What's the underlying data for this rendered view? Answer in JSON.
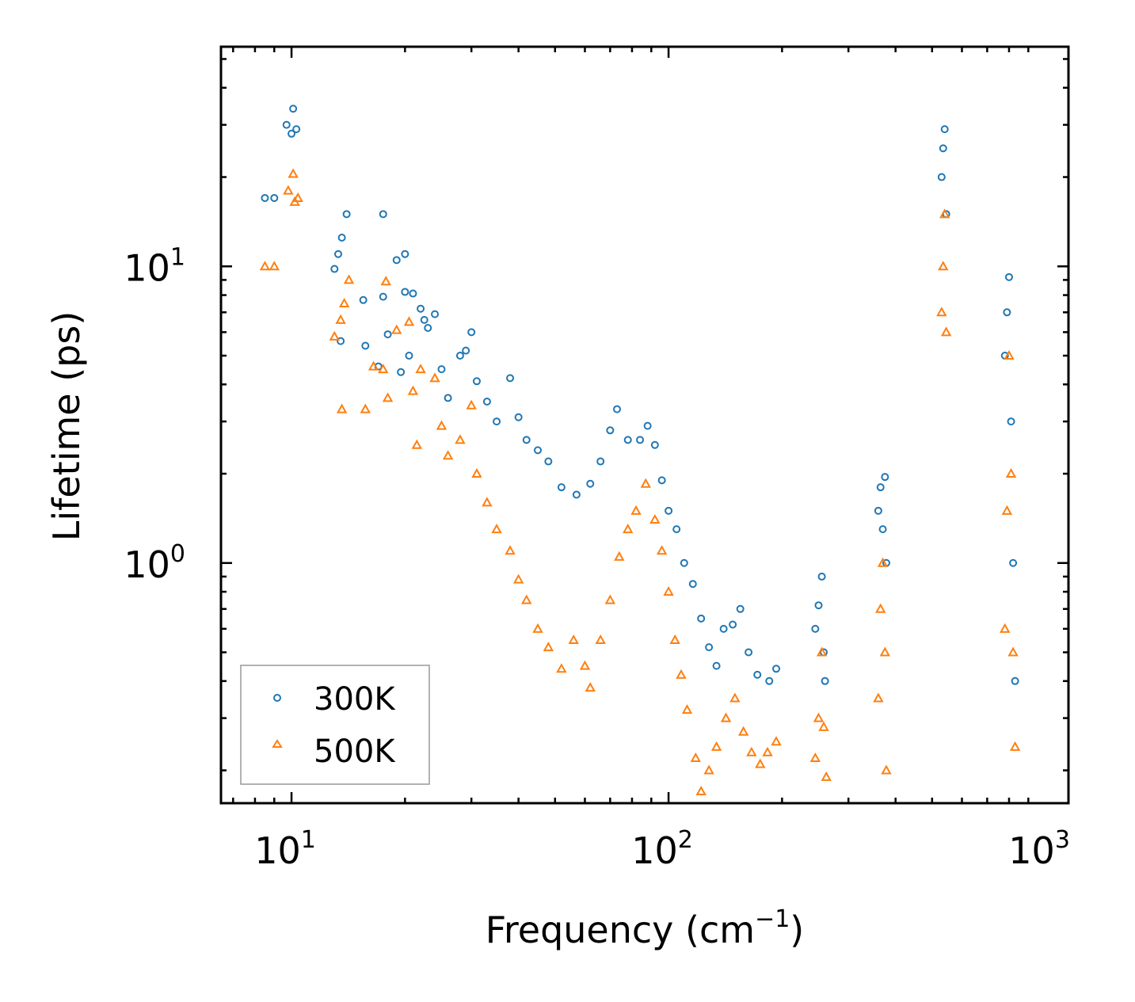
{
  "chart_data": {
    "type": "scatter",
    "xscale": "log",
    "yscale": "log",
    "xlabel": "Frequency (cm",
    "xlabel_sup": "−1",
    "xlabel_close": ")",
    "ylabel": "Lifetime (ps)",
    "xlim": [
      6.5,
      1150
    ],
    "ylim": [
      0.155,
      55
    ],
    "x_ticks": [
      {
        "base": "10",
        "exp": "1",
        "value": 10
      },
      {
        "base": "10",
        "exp": "2",
        "value": 100
      },
      {
        "base": "10",
        "exp": "3",
        "value": 1000
      }
    ],
    "y_ticks": [
      {
        "base": "10",
        "exp": "0",
        "value": 1
      },
      {
        "base": "10",
        "exp": "1",
        "value": 10
      }
    ],
    "legend_position": "lower-left",
    "series": [
      {
        "name": "300K",
        "marker": "circle",
        "color": "#1f77b4",
        "points": [
          [
            8.5,
            17.0
          ],
          [
            9.0,
            17.0
          ],
          [
            9.7,
            30.0
          ],
          [
            10.0,
            28.0
          ],
          [
            10.1,
            34.0
          ],
          [
            10.3,
            29.0
          ],
          [
            13.0,
            9.8
          ],
          [
            13.3,
            11.0
          ],
          [
            13.6,
            12.5
          ],
          [
            14.0,
            15.0
          ],
          [
            13.5,
            5.6
          ],
          [
            15.5,
            7.7
          ],
          [
            15.7,
            5.4
          ],
          [
            17.0,
            4.6
          ],
          [
            17.5,
            15.0
          ],
          [
            17.5,
            7.9
          ],
          [
            18.0,
            5.9
          ],
          [
            19.0,
            10.5
          ],
          [
            20.0,
            11.0
          ],
          [
            20.0,
            8.2
          ],
          [
            21.0,
            8.1
          ],
          [
            22.0,
            7.2
          ],
          [
            22.5,
            6.6
          ],
          [
            24.0,
            6.9
          ],
          [
            19.5,
            4.4
          ],
          [
            20.5,
            5.0
          ],
          [
            23.0,
            6.2
          ],
          [
            25.0,
            4.5
          ],
          [
            26.0,
            3.6
          ],
          [
            28.0,
            5.0
          ],
          [
            29.0,
            5.2
          ],
          [
            30.0,
            6.0
          ],
          [
            31.0,
            4.1
          ],
          [
            33.0,
            3.5
          ],
          [
            35.0,
            3.0
          ],
          [
            38.0,
            4.2
          ],
          [
            40.0,
            3.1
          ],
          [
            42.0,
            2.6
          ],
          [
            45.0,
            2.4
          ],
          [
            48.0,
            2.2
          ],
          [
            52.0,
            1.8
          ],
          [
            57.0,
            1.7
          ],
          [
            62.0,
            1.85
          ],
          [
            66.0,
            2.2
          ],
          [
            70.0,
            2.8
          ],
          [
            73.0,
            3.3
          ],
          [
            78.0,
            2.6
          ],
          [
            84.0,
            2.6
          ],
          [
            88.0,
            2.9
          ],
          [
            92.0,
            2.5
          ],
          [
            96.0,
            1.9
          ],
          [
            100.0,
            1.5
          ],
          [
            105.0,
            1.3
          ],
          [
            110.0,
            1.0
          ],
          [
            116.0,
            0.85
          ],
          [
            122.0,
            0.65
          ],
          [
            128.0,
            0.52
          ],
          [
            134.0,
            0.45
          ],
          [
            140.0,
            0.6
          ],
          [
            148.0,
            0.62
          ],
          [
            155.0,
            0.7
          ],
          [
            163.0,
            0.5
          ],
          [
            172.0,
            0.42
          ],
          [
            185.0,
            0.4
          ],
          [
            193.0,
            0.44
          ],
          [
            245.0,
            0.6
          ],
          [
            250.0,
            0.72
          ],
          [
            255.0,
            0.9
          ],
          [
            258.0,
            0.5
          ],
          [
            260.0,
            0.4
          ],
          [
            360.0,
            1.5
          ],
          [
            365.0,
            1.8
          ],
          [
            370.0,
            1.3
          ],
          [
            375.0,
            1.95
          ],
          [
            378.0,
            1.0
          ],
          [
            530.0,
            20.0
          ],
          [
            535.0,
            25.0
          ],
          [
            540.0,
            29.0
          ],
          [
            545.0,
            15.0
          ],
          [
            780.0,
            5.0
          ],
          [
            790.0,
            7.0
          ],
          [
            800.0,
            9.2
          ],
          [
            810.0,
            3.0
          ],
          [
            820.0,
            1.0
          ],
          [
            830.0,
            0.4
          ]
        ]
      },
      {
        "name": "500K",
        "marker": "triangle",
        "color": "#ff7f0e",
        "points": [
          [
            8.5,
            10.0
          ],
          [
            9.0,
            10.0
          ],
          [
            9.8,
            18.0
          ],
          [
            10.1,
            20.5
          ],
          [
            10.2,
            16.5
          ],
          [
            10.4,
            17.0
          ],
          [
            13.0,
            5.8
          ],
          [
            13.5,
            6.6
          ],
          [
            13.8,
            7.5
          ],
          [
            14.2,
            9.0
          ],
          [
            13.6,
            3.3
          ],
          [
            15.7,
            3.3
          ],
          [
            16.5,
            4.6
          ],
          [
            17.5,
            4.5
          ],
          [
            17.8,
            8.9
          ],
          [
            18.0,
            3.6
          ],
          [
            19.0,
            6.1
          ],
          [
            20.5,
            6.5
          ],
          [
            21.0,
            3.8
          ],
          [
            22.0,
            4.5
          ],
          [
            21.5,
            2.5
          ],
          [
            24.0,
            4.2
          ],
          [
            25.0,
            2.9
          ],
          [
            26.0,
            2.3
          ],
          [
            28.0,
            2.6
          ],
          [
            30.0,
            3.4
          ],
          [
            31.0,
            2.0
          ],
          [
            33.0,
            1.6
          ],
          [
            35.0,
            1.3
          ],
          [
            38.0,
            1.1
          ],
          [
            40.0,
            0.88
          ],
          [
            42.0,
            0.75
          ],
          [
            45.0,
            0.6
          ],
          [
            48.0,
            0.52
          ],
          [
            52.0,
            0.44
          ],
          [
            56.0,
            0.55
          ],
          [
            60.0,
            0.45
          ],
          [
            62.0,
            0.38
          ],
          [
            66.0,
            0.55
          ],
          [
            70.0,
            0.75
          ],
          [
            74.0,
            1.05
          ],
          [
            78.0,
            1.3
          ],
          [
            82.0,
            1.5
          ],
          [
            87.0,
            1.85
          ],
          [
            92.0,
            1.4
          ],
          [
            96.0,
            1.1
          ],
          [
            100.0,
            0.8
          ],
          [
            104.0,
            0.55
          ],
          [
            108.0,
            0.42
          ],
          [
            112.0,
            0.32
          ],
          [
            118.0,
            0.22
          ],
          [
            122.0,
            0.17
          ],
          [
            128.0,
            0.2
          ],
          [
            134.0,
            0.24
          ],
          [
            142.0,
            0.3
          ],
          [
            150.0,
            0.35
          ],
          [
            158.0,
            0.27
          ],
          [
            166.0,
            0.23
          ],
          [
            175.0,
            0.21
          ],
          [
            183.0,
            0.23
          ],
          [
            193.0,
            0.25
          ],
          [
            245.0,
            0.22
          ],
          [
            250.0,
            0.3
          ],
          [
            255.0,
            0.5
          ],
          [
            258.0,
            0.28
          ],
          [
            262.0,
            0.19
          ],
          [
            360.0,
            0.35
          ],
          [
            365.0,
            0.7
          ],
          [
            370.0,
            1.0
          ],
          [
            375.0,
            0.5
          ],
          [
            378.0,
            0.2
          ],
          [
            530.0,
            7.0
          ],
          [
            535.0,
            10.0
          ],
          [
            540.0,
            15.0
          ],
          [
            545.0,
            6.0
          ],
          [
            780.0,
            0.6
          ],
          [
            790.0,
            1.5
          ],
          [
            800.0,
            5.0
          ],
          [
            810.0,
            2.0
          ],
          [
            820.0,
            0.5
          ],
          [
            830.0,
            0.24
          ]
        ]
      }
    ]
  }
}
